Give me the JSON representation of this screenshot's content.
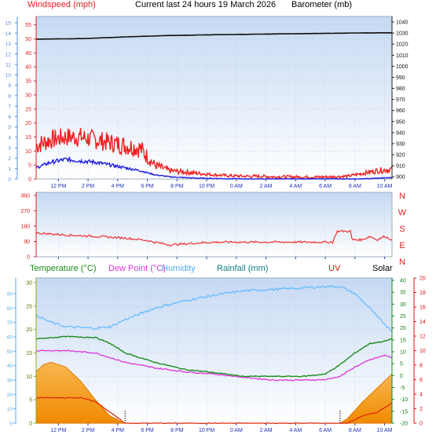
{
  "header": {
    "windspeed": "Windspeed (mph)",
    "title": "Current last 24 hours 19 March 2026",
    "barometer": "Barometer (mb)"
  },
  "legend2": {
    "temperature": "Temperature (°C)",
    "dewpoint": "Dew Point (°C)",
    "humidity": "Humidity",
    "rainfall": "Rainfall (mm)",
    "uv": "UV",
    "solar": "Solar"
  },
  "compass": [
    "N",
    "W",
    "S",
    "E",
    "N"
  ],
  "colors": {
    "wind_gust": "#ee2020",
    "wind_avg": "#2222dd",
    "barometer": "#111111",
    "direction": "#ee3030",
    "temperature": "#1a8a1a",
    "dewpoint": "#dd33dd",
    "humidity": "#66bbff",
    "solar_fill": "#f59a0a",
    "uv": "#dd2200",
    "plot_bg_top": "#c6d9f3",
    "plot_bg_bottom": "#ffffff"
  },
  "chart_data": [
    {
      "type": "line",
      "x_tick_labels": [
        "12 PM",
        "2 PM",
        "4 PM",
        "6 PM",
        "8 PM",
        "10 PM",
        "0 AM",
        "2 AM",
        "4 AM",
        "6 AM",
        "8 AM",
        "10 AM"
      ],
      "y_left_outer": {
        "ticks": [
          "0",
          "1",
          "2",
          "3",
          "4",
          "5",
          "6",
          "7",
          "8",
          "9",
          "10",
          "11",
          "12",
          "13",
          "14",
          "15"
        ]
      },
      "y_left": {
        "label": "Windspeed (mph)",
        "ticks": [
          "0",
          "5",
          "10",
          "15",
          "20",
          "25",
          "30",
          "35",
          "40",
          "45",
          "50",
          "55"
        ],
        "ylim": [
          0,
          58
        ]
      },
      "y_right": {
        "label": "Barometer (mb)",
        "ticks": [
          "900",
          "910",
          "920",
          "930",
          "940",
          "950",
          "960",
          "970",
          "980",
          "990",
          "1000",
          "1010",
          "1020",
          "1030",
          "1040"
        ],
        "ylim": [
          898,
          1045
        ]
      },
      "series": [
        {
          "id": "gust",
          "axis": "left",
          "t": [
            0,
            1,
            2,
            3,
            4,
            5,
            6,
            7,
            8,
            9,
            10,
            11,
            12,
            13,
            14,
            15,
            16,
            17,
            18,
            19,
            20,
            21,
            22,
            23,
            24
          ],
          "values": [
            12,
            14,
            15,
            15,
            14,
            13,
            12,
            11,
            5,
            3,
            2.5,
            2,
            1.5,
            1.2,
            1,
            1,
            0.8,
            0.8,
            0.7,
            0.7,
            0.8,
            1,
            2,
            3,
            3.5
          ]
        },
        {
          "id": "average",
          "axis": "left",
          "t": [
            0,
            1,
            2,
            3,
            4,
            5,
            6,
            7,
            8,
            9,
            10,
            11,
            12,
            13,
            14,
            15,
            16,
            17,
            18,
            19,
            20,
            21,
            22,
            23,
            24
          ],
          "values": [
            4,
            6,
            7,
            6.5,
            6,
            5,
            4,
            3,
            1.5,
            0.8,
            0.5,
            0.3,
            0.2,
            0.1,
            0,
            0,
            0,
            0,
            0,
            0,
            0,
            0,
            0,
            0.3,
            0.5
          ]
        },
        {
          "id": "barometer",
          "axis": "right",
          "t": [
            0,
            3,
            6,
            9,
            12,
            15,
            18,
            21,
            24
          ],
          "values": [
            1024.5,
            1025,
            1026.5,
            1027.8,
            1028.5,
            1029,
            1029.5,
            1030,
            1030.3
          ]
        }
      ]
    },
    {
      "type": "line",
      "x_tick_labels": [],
      "y_left": {
        "ticks": [
          "0",
          "90",
          "180",
          "270",
          "360"
        ],
        "ylim": [
          0,
          360
        ]
      },
      "y_right": {
        "ticks": [
          "N",
          "W",
          "S",
          "E",
          "N"
        ]
      },
      "series": [
        {
          "id": "direction",
          "t": [
            0,
            2,
            4,
            6,
            7.5,
            8,
            9,
            10,
            11,
            12,
            13,
            14,
            15,
            16,
            17,
            18,
            19,
            20,
            20.3,
            21,
            21.2,
            21.3,
            22,
            22.5,
            23,
            23.5,
            24
          ],
          "values": [
            140,
            128,
            120,
            110,
            96,
            85,
            70,
            75,
            82,
            85,
            86,
            86,
            86,
            86,
            86,
            86,
            86,
            86,
            150,
            150,
            150,
            100,
            100,
            120,
            100,
            120,
            100
          ]
        }
      ]
    },
    {
      "type": "line",
      "x_tick_labels": [
        "12 PM",
        "2 PM",
        "4 PM",
        "6 PM",
        "8 PM",
        "10 PM",
        "0 AM",
        "2 AM",
        "4 AM",
        "6 AM",
        "8 AM",
        "10 AM"
      ],
      "y_left_outer": {
        "label": "Humidity",
        "ticks": [
          "0",
          "10",
          "20",
          "30",
          "40",
          "50",
          "60",
          "70",
          "80",
          "90"
        ]
      },
      "y_left": {
        "ticks": [
          "0",
          "5",
          "10",
          "15",
          "20",
          "25",
          "30"
        ],
        "ylim": [
          0,
          31
        ]
      },
      "y_right": {
        "ticks": [
          "-20",
          "-15",
          "-10",
          "-5",
          "0",
          "5",
          "10",
          "15",
          "20",
          "25",
          "30",
          "35",
          "40"
        ],
        "ylim": [
          -20,
          41
        ]
      },
      "y_right_outer": {
        "ticks": [
          "0",
          "2",
          "4",
          "6",
          "8",
          "10",
          "12",
          "14",
          "16",
          "18",
          "20"
        ]
      },
      "series": [
        {
          "id": "temperature",
          "t": [
            0,
            2,
            4,
            5,
            6,
            8,
            10,
            12,
            14,
            16,
            18,
            19.5,
            20.5,
            21.5,
            22.5,
            23.5,
            24
          ],
          "values": [
            18,
            18.5,
            18.3,
            17,
            15,
            13,
            11.5,
            10.8,
            10,
            10,
            10,
            10.5,
            12.5,
            15,
            17,
            17.5,
            18
          ]
        },
        {
          "id": "dewpoint",
          "t": [
            0,
            2,
            4,
            5,
            6,
            8,
            10,
            12,
            14,
            16,
            18,
            19.5,
            20.5,
            21.5,
            22.5,
            23.5,
            24
          ],
          "values": [
            15.5,
            15.5,
            15,
            14,
            13,
            11.8,
            11,
            10.5,
            9.8,
            9.2,
            9.2,
            9.3,
            10,
            12,
            13.5,
            14.5,
            14
          ]
        },
        {
          "id": "humidity",
          "t": [
            0,
            1,
            2,
            4,
            5,
            6,
            8,
            10,
            12,
            14,
            16,
            18,
            19.5,
            20.5,
            21.5,
            22.5,
            23,
            24
          ],
          "values": [
            75,
            70,
            67,
            66,
            67,
            72,
            80,
            85,
            89,
            92,
            93,
            94,
            95,
            95,
            90,
            80,
            74,
            64
          ]
        },
        {
          "id": "solar",
          "t": [
            0,
            0.5,
            1,
            2,
            3,
            4,
            5,
            6
          ],
          "values": [
            11,
            12.5,
            13,
            12,
            9,
            5,
            1.5,
            0
          ]
        },
        {
          "id": "solar_morning",
          "t": [
            20.5,
            21,
            22,
            23,
            24
          ],
          "values": [
            0,
            1,
            4.5,
            7.5,
            10.5
          ]
        },
        {
          "id": "uv",
          "t": [
            0,
            1,
            2,
            3,
            4,
            5,
            6,
            20.5,
            21,
            22,
            23,
            24
          ],
          "values": [
            3.5,
            3.5,
            3.5,
            3.5,
            3,
            1.5,
            0,
            0,
            0,
            1,
            1.5,
            2.8
          ]
        }
      ]
    }
  ]
}
